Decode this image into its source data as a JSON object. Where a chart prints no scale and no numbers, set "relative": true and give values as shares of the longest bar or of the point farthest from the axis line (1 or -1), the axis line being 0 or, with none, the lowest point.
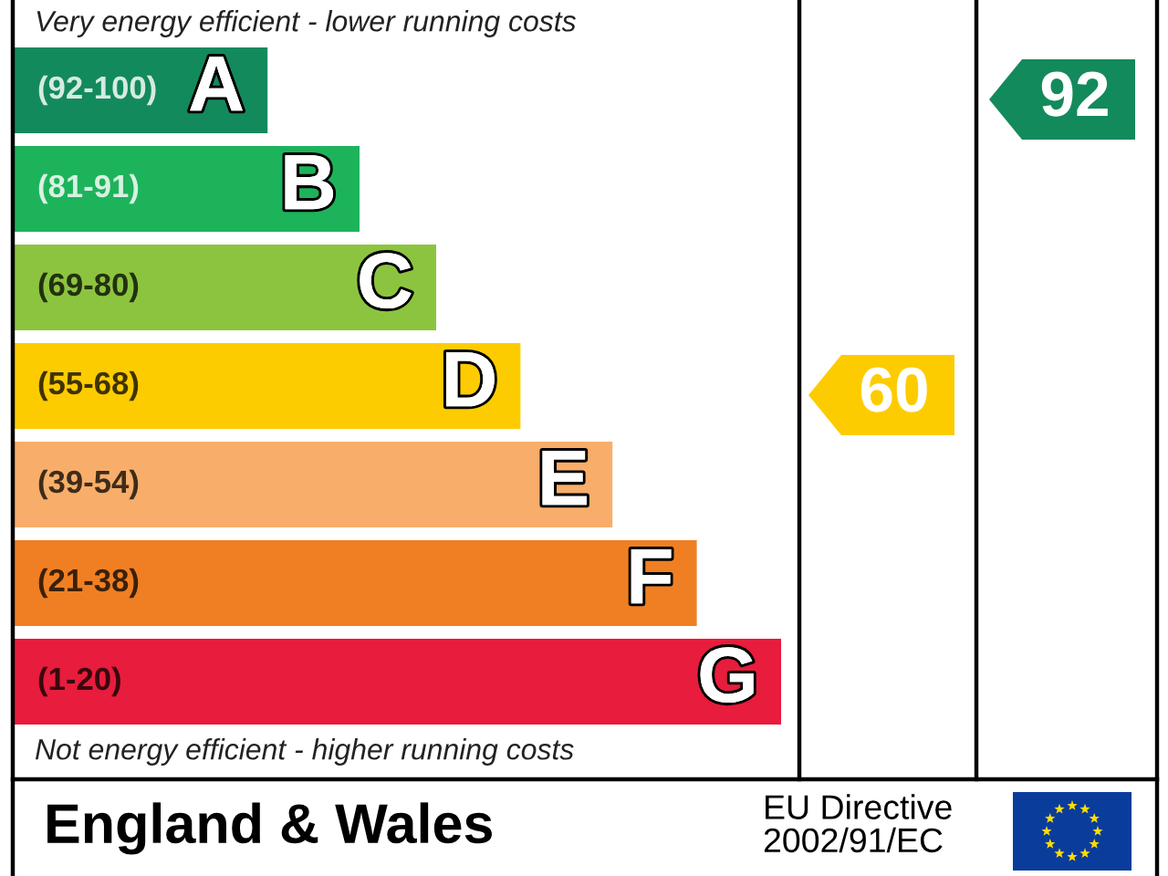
{
  "chart_data": {
    "type": "bar",
    "orientation": "horizontal",
    "relative": true,
    "categories": [
      "(92-100)",
      "(81-91)",
      "(69-80)",
      "(55-68)",
      "(39-54)",
      "(21-38)",
      "(1-20)"
    ],
    "values": [
      0.33,
      0.45,
      0.55,
      0.66,
      0.78,
      0.89,
      1
    ],
    "colors": [
      "#138a5c",
      "#1db35b",
      "#8cc43f",
      "#fdcc00",
      "#f8ae6a",
      "#f07f23",
      "#e81c3c"
    ],
    "annotations": [
      "Very energy efficient - lower running costs",
      "Not energy efficient - higher running costs",
      "England & Wales",
      "EU Directive\n2002/91/EC",
      "60",
      "92",
      {
        "text": "A",
        "x": 0.33,
        "y": "(92-100)"
      },
      {
        "text": "B",
        "x": 0.45,
        "y": "(81-91)"
      },
      {
        "text": "C",
        "x": 0.55,
        "y": "(69-80)"
      },
      {
        "text": "D",
        "x": 0.66,
        "y": "(55-68)"
      },
      {
        "text": "E",
        "x": 0.78,
        "y": "(39-54)"
      },
      {
        "text": "F",
        "x": 0.89,
        "y": "(21-38)"
      },
      {
        "text": "G",
        "x": 1,
        "y": "(1-20)"
      }
    ]
  }
}
